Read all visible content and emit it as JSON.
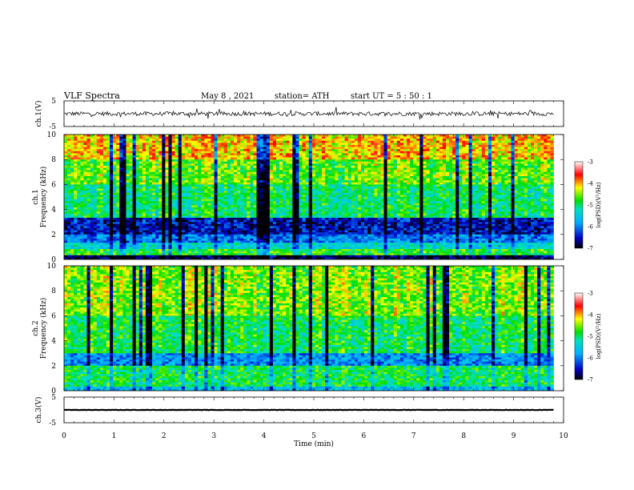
{
  "header": {
    "title": "VLF  Spectra",
    "date": "May 8  , 2021",
    "station": "station= ATH",
    "start": "start  UT  =    5  : 50 : 1"
  },
  "chart_data": [
    {
      "type": "line",
      "ylabel": "ch.1(V)",
      "xlim": [
        0,
        10
      ],
      "ylim": [
        -5,
        5
      ],
      "yticks": [
        "5",
        "-5"
      ],
      "series_description_only": false,
      "mean": 0,
      "amplitude": 1.6
    },
    {
      "type": "heatmap",
      "ylabel_top": "ch.1",
      "ylabel": "Frequency  (kHz)",
      "xlim": [
        0,
        10
      ],
      "ylim": [
        0,
        10
      ],
      "yticks": [
        "0",
        "2",
        "4",
        "6",
        "8",
        "10"
      ],
      "colorbar": {
        "label": "log(PSD)(V²/Hz)",
        "range": [
          -7,
          -3
        ],
        "ticks": [
          "-3",
          "-4",
          "-5",
          "-6",
          "-7"
        ]
      },
      "bands_khz": [
        {
          "from": 0.0,
          "to": 0.3,
          "level": -6.8
        },
        {
          "from": 0.3,
          "to": 0.9,
          "level": -4.8
        },
        {
          "from": 0.9,
          "to": 1.3,
          "level": -5.4
        },
        {
          "from": 1.3,
          "to": 2.0,
          "level": -6.0
        },
        {
          "from": 2.0,
          "to": 3.4,
          "level": -6.5
        },
        {
          "from": 3.4,
          "to": 6.0,
          "level": -5.0
        },
        {
          "from": 6.0,
          "to": 8.0,
          "level": -4.6
        },
        {
          "from": 8.0,
          "to": 10.0,
          "level": -4.1
        }
      ]
    },
    {
      "type": "heatmap",
      "ylabel_top": "ch.2",
      "ylabel": "Frequency  (kHz)",
      "xlim": [
        0,
        10
      ],
      "ylim": [
        0,
        10
      ],
      "yticks": [
        "0",
        "2",
        "4",
        "6",
        "8",
        "10"
      ],
      "colorbar": {
        "label": "log(PSD)(V²/Hz)",
        "range": [
          -7,
          -3
        ],
        "ticks": [
          "-3",
          "-4",
          "-5",
          "-6",
          "-7"
        ]
      },
      "bands_khz": [
        {
          "from": 0.0,
          "to": 0.4,
          "level": -5.6
        },
        {
          "from": 0.4,
          "to": 2.0,
          "level": -4.9
        },
        {
          "from": 2.0,
          "to": 3.0,
          "level": -5.9
        },
        {
          "from": 3.0,
          "to": 6.0,
          "level": -4.9
        },
        {
          "from": 6.0,
          "to": 10.0,
          "level": -4.5
        }
      ]
    },
    {
      "type": "line",
      "ylabel": "ch.3(V)",
      "xlim": [
        0,
        10
      ],
      "ylim": [
        -5,
        5
      ],
      "yticks": [
        "5",
        "-5"
      ],
      "mean": 0,
      "amplitude": 0.15
    }
  ],
  "xaxis": {
    "label": "Time  (min)",
    "ticks": [
      "0",
      "1",
      "2",
      "3",
      "4",
      "5",
      "6",
      "7",
      "8",
      "9",
      "10"
    ],
    "data_end": 9.8
  }
}
